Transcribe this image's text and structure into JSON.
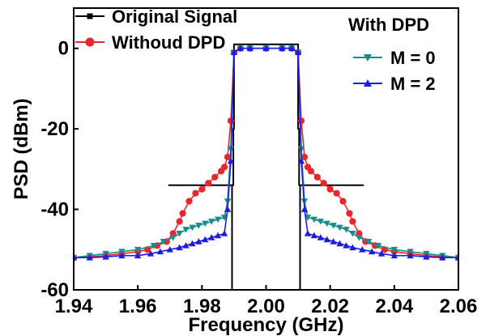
{
  "chart_data": {
    "type": "line",
    "title": "",
    "xlabel": "Frequency (GHz)",
    "ylabel": "PSD (dBm)",
    "xlim": [
      1.94,
      2.06
    ],
    "ylim": [
      -60,
      10
    ],
    "xticks": [
      "1.94",
      "1.96",
      "1.98",
      "2.00",
      "2.02",
      "2.04",
      "2.06"
    ],
    "yticks": [
      "0",
      "-20",
      "-40",
      "-60"
    ],
    "grid": false,
    "legend_title": "With DPD",
    "series": [
      {
        "name": "Original Signal",
        "color": "#000000",
        "marker": "square",
        "x": [
          1.9894,
          1.9894,
          1.9898,
          1.9898,
          1.99,
          1.99,
          2.01,
          2.01,
          2.0103,
          2.0103,
          2.0106,
          2.0106
        ],
        "y": [
          -60,
          -34,
          -34,
          -20,
          -20,
          1,
          1,
          -20,
          -20,
          -34,
          -34,
          -60
        ]
      },
      {
        "name": "Original Signal (shoulder)",
        "color": "#000000",
        "marker": "square",
        "x": [
          1.9695,
          1.9894
        ],
        "y": [
          -34,
          -34
        ]
      },
      {
        "name": "Original Signal (shoulder right)",
        "color": "#000000",
        "marker": "square",
        "x": [
          2.0106,
          2.0305
        ],
        "y": [
          -34,
          -34
        ]
      },
      {
        "name": "Withoud DPD",
        "color": "#e8262b",
        "marker": "circle",
        "x": [
          1.94,
          1.945,
          1.95,
          1.955,
          1.96,
          1.963,
          1.966,
          1.969,
          1.971,
          1.973,
          1.974,
          1.976,
          1.978,
          1.98,
          1.982,
          1.984,
          1.986,
          1.987,
          1.988,
          1.989,
          1.99,
          1.992,
          1.995,
          2.0,
          2.005,
          2.008,
          2.01,
          2.011,
          2.012,
          2.013,
          2.014,
          2.016,
          2.018,
          2.02,
          2.022,
          2.024,
          2.026,
          2.027,
          2.029,
          2.031,
          2.034,
          2.037,
          2.04,
          2.045,
          2.05,
          2.055,
          2.06
        ],
        "y": [
          -52.0,
          -51.8,
          -51.5,
          -51.0,
          -50.5,
          -50.0,
          -49.0,
          -48.0,
          -46.0,
          -43.0,
          -41.0,
          -38.0,
          -36.0,
          -35.0,
          -33.5,
          -32.0,
          -30.5,
          -29.5,
          -27.0,
          -18.0,
          -1.0,
          0.0,
          0.0,
          0.0,
          0.0,
          0.0,
          -1.0,
          -18.0,
          -27.0,
          -29.5,
          -30.5,
          -32.0,
          -33.5,
          -35.0,
          -36.0,
          -38.0,
          -41.0,
          -43.0,
          -46.0,
          -48.0,
          -49.0,
          -50.0,
          -50.5,
          -51.0,
          -51.5,
          -51.8,
          -52.0
        ]
      },
      {
        "name": "M = 0",
        "color": "#1a8c8c",
        "marker": "triangle-down",
        "x": [
          1.94,
          1.945,
          1.95,
          1.955,
          1.96,
          1.965,
          1.968,
          1.971,
          1.973,
          1.975,
          1.977,
          1.979,
          1.981,
          1.983,
          1.985,
          1.987,
          1.988,
          1.989,
          1.99,
          1.992,
          1.995,
          2.0,
          2.005,
          2.008,
          2.01,
          2.011,
          2.012,
          2.013,
          2.015,
          2.017,
          2.019,
          2.021,
          2.023,
          2.025,
          2.027,
          2.029,
          2.032,
          2.035,
          2.04,
          2.045,
          2.05,
          2.055,
          2.06
        ],
        "y": [
          -52.0,
          -51.5,
          -51.0,
          -50.5,
          -50.0,
          -49.0,
          -48.0,
          -47.0,
          -46.0,
          -45.0,
          -44.5,
          -44.0,
          -43.5,
          -43.0,
          -42.5,
          -42.0,
          -38.0,
          -25.0,
          -1.0,
          0.0,
          0.0,
          0.0,
          0.0,
          0.0,
          -1.0,
          -25.0,
          -38.0,
          -42.0,
          -42.5,
          -43.0,
          -43.5,
          -44.0,
          -44.5,
          -45.0,
          -46.0,
          -47.0,
          -48.0,
          -49.0,
          -50.0,
          -50.5,
          -51.0,
          -51.5,
          -52.0
        ]
      },
      {
        "name": "M = 2",
        "color": "#1c1ce0",
        "marker": "triangle-up",
        "x": [
          1.94,
          1.945,
          1.95,
          1.955,
          1.96,
          1.964,
          1.967,
          1.97,
          1.973,
          1.975,
          1.977,
          1.979,
          1.981,
          1.983,
          1.985,
          1.987,
          1.988,
          1.989,
          1.99,
          1.992,
          1.995,
          2.0,
          2.005,
          2.008,
          2.01,
          2.011,
          2.012,
          2.013,
          2.015,
          2.017,
          2.019,
          2.021,
          2.023,
          2.025,
          2.027,
          2.03,
          2.033,
          2.036,
          2.04,
          2.045,
          2.05,
          2.055,
          2.06
        ],
        "y": [
          -52.0,
          -52.0,
          -51.8,
          -51.5,
          -51.5,
          -51.0,
          -50.5,
          -50.0,
          -49.5,
          -49.0,
          -48.5,
          -48.0,
          -47.5,
          -47.0,
          -46.5,
          -46.0,
          -40.0,
          -28.0,
          -1.0,
          0.0,
          0.0,
          0.0,
          0.0,
          0.0,
          -1.0,
          -28.0,
          -40.0,
          -46.0,
          -46.5,
          -47.0,
          -47.5,
          -48.0,
          -48.5,
          -49.0,
          -49.5,
          -50.0,
          -50.5,
          -51.0,
          -51.5,
          -51.5,
          -51.8,
          -52.0,
          -52.0
        ]
      }
    ]
  },
  "legend": {
    "original": "Original Signal",
    "without": "Withoud DPD",
    "with_title": "With DPD",
    "m0": "M = 0",
    "m2": "M = 2"
  }
}
